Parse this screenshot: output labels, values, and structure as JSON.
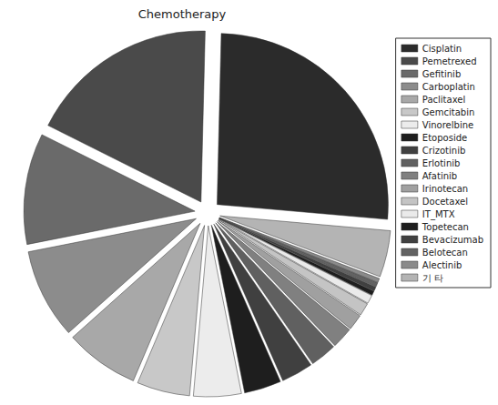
{
  "chart_data": {
    "type": "pie",
    "title": "Chemotherapy",
    "categories": [
      "Cisplatin",
      "Pemetrexed",
      "Gefitinib",
      "Carboplatin",
      "Paclitaxel",
      "Gemcitabin",
      "Vinorelbine",
      "Etoposide",
      "Crizotinib",
      "Erlotinib",
      "Afatinib",
      "Irinotecan",
      "Docetaxel",
      "IT_MTX",
      "Topetecan",
      "Bevacizumab",
      "Belotecan",
      "Alectinib",
      "기 타"
    ],
    "values": [
      26,
      18,
      10.5,
      8.5,
      7,
      5,
      4.5,
      3.5,
      3,
      2.5,
      2,
      1.5,
      1.2,
      0.8,
      0.4,
      0.4,
      0.4,
      0.4,
      4.4
    ],
    "colors": [
      "#2b2b2b",
      "#4a4a4a",
      "#6a6a6a",
      "#8c8c8c",
      "#a8a8a8",
      "#c8c8c8",
      "#ececec",
      "#1e1e1e",
      "#404040",
      "#606060",
      "#808080",
      "#a0a0a0",
      "#c4c4c4",
      "#eaeaea",
      "#1e1e1e",
      "#404040",
      "#626262",
      "#8a8a8a",
      "#b4b4b4"
    ],
    "legend": "right"
  }
}
